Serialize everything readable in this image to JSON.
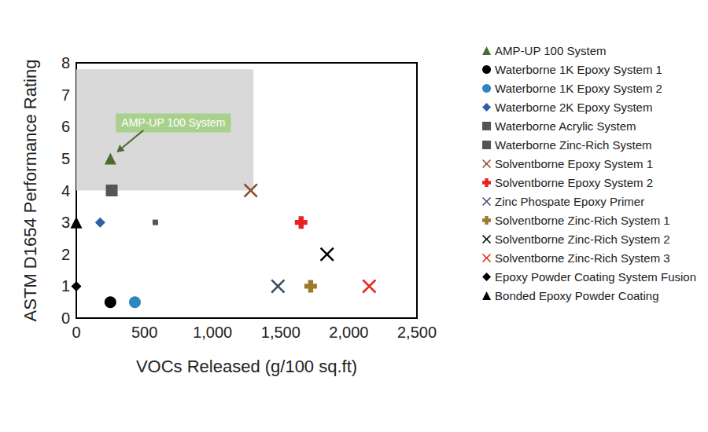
{
  "chart_data": {
    "type": "scatter",
    "x_label": "VOCs Released (g/100 sq.ft)",
    "y_label": "ASTM D1654 Performance Rating",
    "xlim": [
      0,
      2500
    ],
    "xticks": [
      0,
      500,
      {
        "value": 1000,
        "label": "1,000"
      },
      {
        "value": 1500,
        "label": "1,500"
      },
      {
        "value": 2000,
        "label": "2,000"
      },
      {
        "value": 2500,
        "label": "2,500"
      }
    ],
    "ylim": [
      0,
      8
    ],
    "yticks": [
      0,
      1,
      2,
      3,
      4,
      5,
      6,
      7,
      8
    ],
    "grid": false,
    "legend": "right",
    "region": {
      "x": [
        0,
        1300
      ],
      "y": [
        4,
        7.8
      ]
    },
    "annotations": [
      {
        "text": "AMP-UP 100 System",
        "series": "AMP-UP 100 System"
      }
    ],
    "series": [
      {
        "name": "AMP-UP 100 System",
        "color": "#4e6b31",
        "marker": "triangle",
        "x": [
          250
        ],
        "values": [
          5
        ]
      },
      {
        "name": "Waterborne 1K Epoxy System 1",
        "color": "#000000",
        "marker": "circle",
        "x": [
          250
        ],
        "values": [
          0.5
        ]
      },
      {
        "name": "Waterborne 1K Epoxy System 2",
        "color": "#2e86c1",
        "marker": "circle",
        "x": [
          430
        ],
        "values": [
          0.5
        ]
      },
      {
        "name": "Waterborne 2K Epoxy System",
        "color": "#2e5fa8",
        "marker": "diamond",
        "x": [
          175
        ],
        "values": [
          3
        ]
      },
      {
        "name": "Waterborne Acrylic System",
        "color": "#555555",
        "marker": "small square",
        "x": [
          580
        ],
        "values": [
          3
        ]
      },
      {
        "name": "Waterborne Zinc-Rich System",
        "color": "#555555",
        "marker": "square",
        "x": [
          260
        ],
        "values": [
          4
        ]
      },
      {
        "name": "Solventborne Epoxy System 1",
        "color": "#8b4a2b",
        "marker": "x",
        "x": [
          1280
        ],
        "values": [
          4
        ]
      },
      {
        "name": "Solventborne Epoxy System 2",
        "color": "#e8231f",
        "marker": "plus",
        "x": [
          1650
        ],
        "values": [
          3
        ]
      },
      {
        "name": "Zinc Phospate Epoxy Primer",
        "color": "#3d4f66",
        "marker": "x",
        "x": [
          1480
        ],
        "values": [
          1
        ]
      },
      {
        "name": "Solventborne Zinc-Rich System 1",
        "color": "#9c7a2a",
        "marker": "plus",
        "x": [
          1720
        ],
        "values": [
          1
        ]
      },
      {
        "name": "Solventborne Zinc-Rich System 2",
        "color": "#000000",
        "marker": "x",
        "x": [
          1840
        ],
        "values": [
          2
        ]
      },
      {
        "name": "Solventborne Zinc-Rich System 3",
        "color": "#e8231f",
        "marker": "x",
        "x": [
          2150
        ],
        "values": [
          1
        ]
      },
      {
        "name": "Epoxy Powder Coating System Fusion",
        "color": "#000000",
        "marker": "diamond",
        "x": [
          0
        ],
        "values": [
          1
        ]
      },
      {
        "name": "Bonded Epoxy Powder Coating",
        "color": "#000000",
        "marker": "triangle",
        "x": [
          0
        ],
        "values": [
          3
        ]
      }
    ]
  }
}
